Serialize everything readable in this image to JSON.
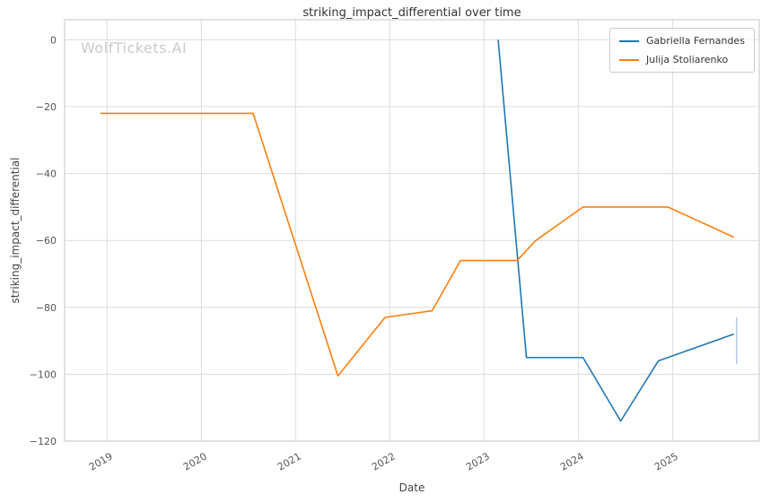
{
  "watermark": "WolfTickets.AI",
  "chart_data": {
    "type": "line",
    "title": "striking_impact_differential over time",
    "xlabel": "Date",
    "ylabel": "striking_impact_differential",
    "xlim": [
      2018.55,
      2025.92
    ],
    "ylim": [
      -120,
      6
    ],
    "x_ticks": [
      2019,
      2020,
      2021,
      2022,
      2023,
      2024,
      2025
    ],
    "y_ticks": [
      0,
      -20,
      -40,
      -60,
      -80,
      -100,
      -120
    ],
    "grid": true,
    "legend_position": "upper right",
    "series": [
      {
        "name": "Gabriella Fernandes",
        "color": "#1f77b4",
        "x": [
          2023.15,
          2023.45,
          2024.05,
          2024.45,
          2024.85,
          2025.65
        ],
        "y": [
          0,
          -95,
          -95,
          -114,
          -96,
          -88
        ]
      },
      {
        "name": "Julija Stoliarenko",
        "color": "#ff7f0e",
        "x": [
          2018.93,
          2020.55,
          2021.45,
          2021.95,
          2022.2,
          2022.45,
          2022.75,
          2023.35,
          2023.55,
          2024.05,
          2024.95,
          2025.65
        ],
        "y": [
          -22,
          -22,
          -100.5,
          -83,
          -82,
          -81,
          -66,
          -66,
          -60,
          -50,
          -50,
          -59
        ]
      }
    ],
    "annotations": [
      {
        "type": "vline-segment",
        "x": 2025.68,
        "y1": -83,
        "y2": -97,
        "color": "#aec7e8"
      }
    ]
  }
}
